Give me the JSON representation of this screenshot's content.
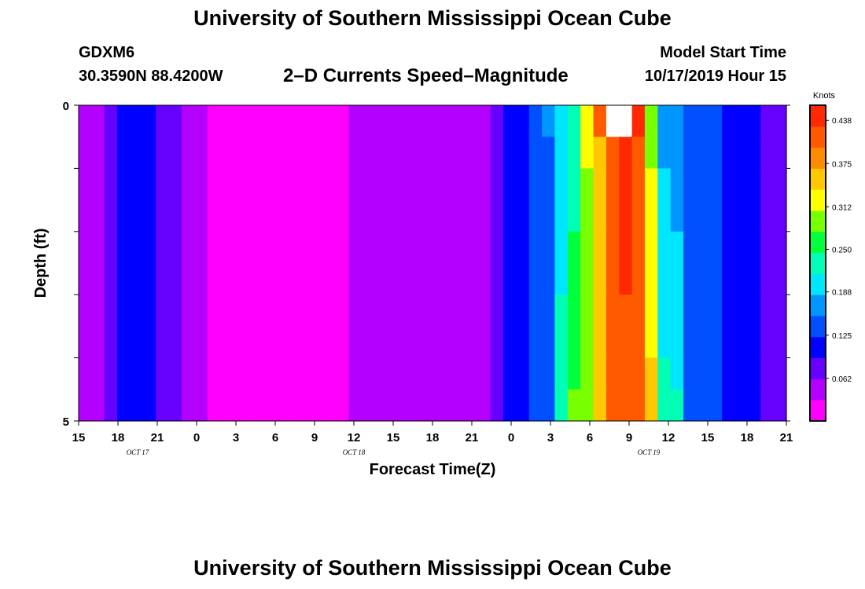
{
  "header": {
    "title": "University of Southern Mississippi Ocean Cube",
    "station": "GDXM6",
    "coords": "30.3590N 88.4200W",
    "subtitle": "2–D Currents Speed–Magnitude",
    "model_start_label": "Model Start Time",
    "model_start_value": "10/17/2019 Hour 15"
  },
  "footer": {
    "title": "University of Southern Mississippi Ocean Cube"
  },
  "chart_data": {
    "type": "heatmap",
    "title": "2–D Currents Speed–Magnitude",
    "xlabel": "Forecast Time(Z)",
    "ylabel": "Depth (ft)",
    "colorbar_label": "Knots",
    "x_tick_labels": [
      "15",
      "18",
      "21",
      "0",
      "3",
      "6",
      "9",
      "12",
      "15",
      "18",
      "21",
      "0",
      "3",
      "6",
      "9",
      "12",
      "15",
      "18",
      "21"
    ],
    "date_labels": [
      {
        "label": "OCT 17",
        "tick_index": 1.5
      },
      {
        "label": "OCT 18",
        "tick_index": 7
      },
      {
        "label": "OCT 19",
        "tick_index": 14.5
      }
    ],
    "y_ticks": [
      0,
      1,
      2,
      3,
      4,
      5
    ],
    "y_tick_labels": [
      "0",
      "",
      "",
      "",
      "",
      "5"
    ],
    "ylim": [
      0,
      5
    ],
    "x_hours": [
      0,
      1,
      2,
      3,
      4,
      5,
      6,
      7,
      8,
      9,
      10,
      11,
      12,
      13,
      14,
      15,
      16,
      17,
      18,
      19,
      20,
      21,
      22,
      23,
      24,
      25,
      26,
      27,
      28,
      29,
      30,
      31,
      32,
      33,
      34,
      35,
      36,
      37,
      38,
      39,
      40,
      41,
      42,
      43,
      44,
      45,
      46,
      47,
      48,
      49,
      50,
      51,
      52,
      53,
      54
    ],
    "depth_rows": [
      "0–0.5",
      "0.5–1",
      "1–2",
      "2–3",
      "3–4",
      "4–4.5",
      "4.5–5"
    ],
    "speed_profile_knots": [
      0.05,
      0.06,
      0.08,
      0.1,
      0.11,
      0.1,
      0.09,
      0.08,
      0.06,
      0.04,
      0.03,
      0.03,
      0.02,
      0.02,
      0.02,
      0.015,
      0.01,
      0.015,
      0.02,
      0.025,
      0.03,
      0.035,
      0.04,
      0.045,
      0.05,
      0.05,
      0.05,
      0.05,
      0.05,
      0.055,
      0.06,
      0.06,
      0.07,
      0.11,
      0.12,
      0.13,
      0.15,
      0.18,
      0.22,
      0.31,
      0.37,
      0.42,
      0.44,
      0.42,
      0.29,
      0.17,
      0.16,
      0.15,
      0.14,
      0.13,
      0.12,
      0.11,
      0.1,
      0.09,
      0.08
    ],
    "surface_row_knots": [
      0.05,
      0.06,
      0.08,
      0.1,
      0.11,
      0.1,
      0.09,
      0.08,
      0.06,
      0.04,
      0.03,
      0.03,
      0.02,
      0.02,
      0.02,
      0.015,
      0.01,
      0.015,
      0.02,
      0.025,
      0.03,
      0.035,
      0.04,
      0.045,
      0.05,
      0.05,
      0.05,
      0.05,
      0.05,
      0.055,
      0.06,
      0.06,
      0.07,
      0.11,
      0.12,
      0.14,
      0.17,
      0.2,
      0.23,
      0.33,
      0.41,
      0.47,
      0.47,
      0.44,
      0.29,
      0.17,
      0.16,
      0.15,
      0.14,
      0.13,
      0.12,
      0.11,
      0.1,
      0.09,
      0.08
    ],
    "colorbar_ticks": [
      "0.438",
      "0.375",
      "0.312",
      "0.250",
      "0.188",
      "0.125",
      "0.062"
    ],
    "colorbar_range": [
      0,
      0.46
    ],
    "colors": {
      "colorscale": [
        "#ff00ff",
        "#b400ff",
        "#6600ff",
        "#0000ff",
        "#0050ff",
        "#0096ff",
        "#00e6ff",
        "#00ffb4",
        "#00ff3c",
        "#78ff00",
        "#ffff00",
        "#ffc800",
        "#ff8c00",
        "#ff5a00",
        "#ff2800"
      ],
      "over_range": "#ffffff"
    }
  }
}
